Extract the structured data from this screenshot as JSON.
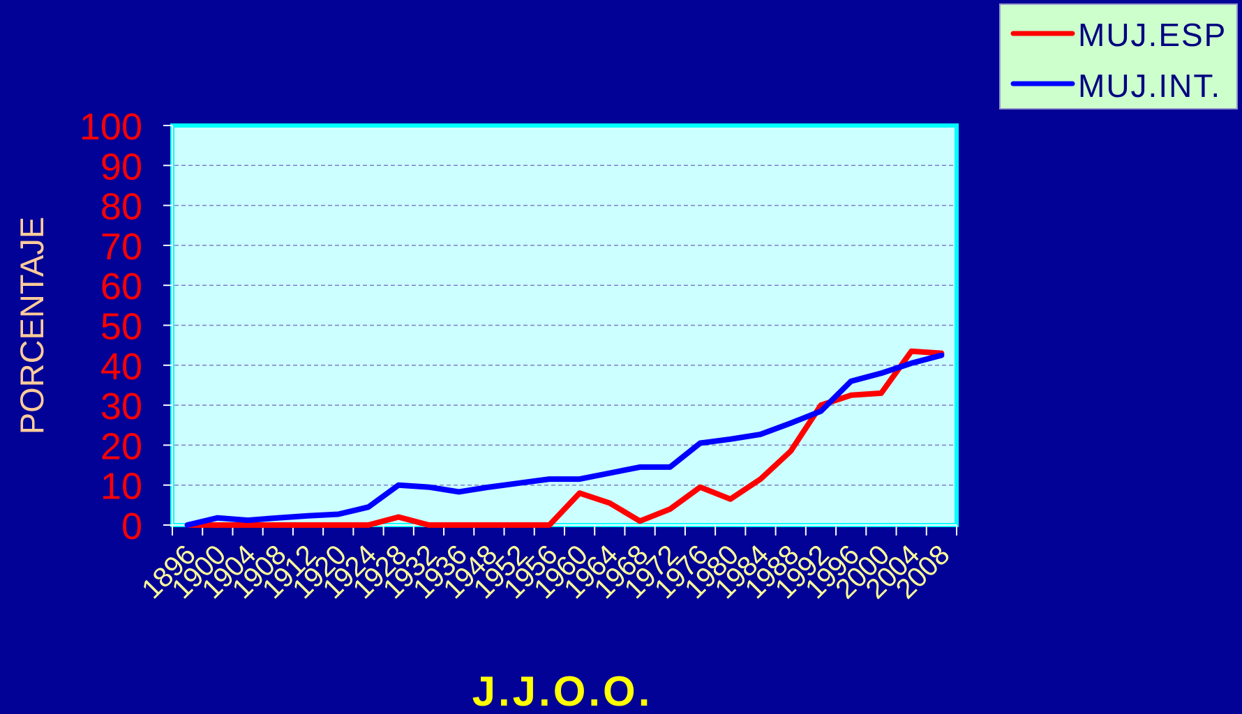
{
  "colors": {
    "background": "#020296",
    "plot_background": "#CCFFFF",
    "plot_border": "#00FFFF",
    "grid": "#7E7EC8",
    "y_tick_labels": "#FF0000",
    "x_tick_labels": "#FFFF99",
    "y_axis_label": "#FFCC99",
    "x_axis_label": "#FFFF00",
    "legend_background": "#CCFFCC",
    "legend_text": "#000080"
  },
  "chart_data": {
    "type": "line",
    "title": "",
    "xlabel": "J.J.O.O.",
    "ylabel": "PORCENTAJE",
    "ylim": [
      0,
      100
    ],
    "yticks": [
      "0",
      "10",
      "20",
      "30",
      "40",
      "50",
      "60",
      "70",
      "80",
      "90",
      "100"
    ],
    "grid": true,
    "legend_position": "top-right",
    "categories": [
      "1896",
      "1900",
      "1904",
      "1908",
      "1912",
      "1920",
      "1924",
      "1928",
      "1932",
      "1936",
      "1948",
      "1952",
      "1956",
      "1960",
      "1964",
      "1968",
      "1972",
      "1976",
      "1980",
      "1984",
      "1988",
      "1992",
      "1996",
      "2000",
      "2004",
      "2008"
    ],
    "series": [
      {
        "name": "MUJ.ESP",
        "color": "#FF0000",
        "values": [
          0,
          0,
          0,
          0,
          0,
          0,
          0,
          2,
          0,
          0,
          0,
          0,
          0,
          8,
          5.5,
          1,
          4,
          9.5,
          6.5,
          11.5,
          18.5,
          30,
          32.5,
          33,
          43.5,
          43
        ]
      },
      {
        "name": "MUJ.INT.",
        "color": "#0000FF",
        "values": [
          0,
          1.8,
          1.2,
          1.8,
          2.3,
          2.7,
          4.5,
          10,
          9.5,
          8.3,
          9.5,
          10.5,
          11.5,
          11.5,
          13,
          14.5,
          14.5,
          20.5,
          21.5,
          22.7,
          25.5,
          28.5,
          36,
          38,
          40.5,
          42.5
        ]
      }
    ]
  }
}
